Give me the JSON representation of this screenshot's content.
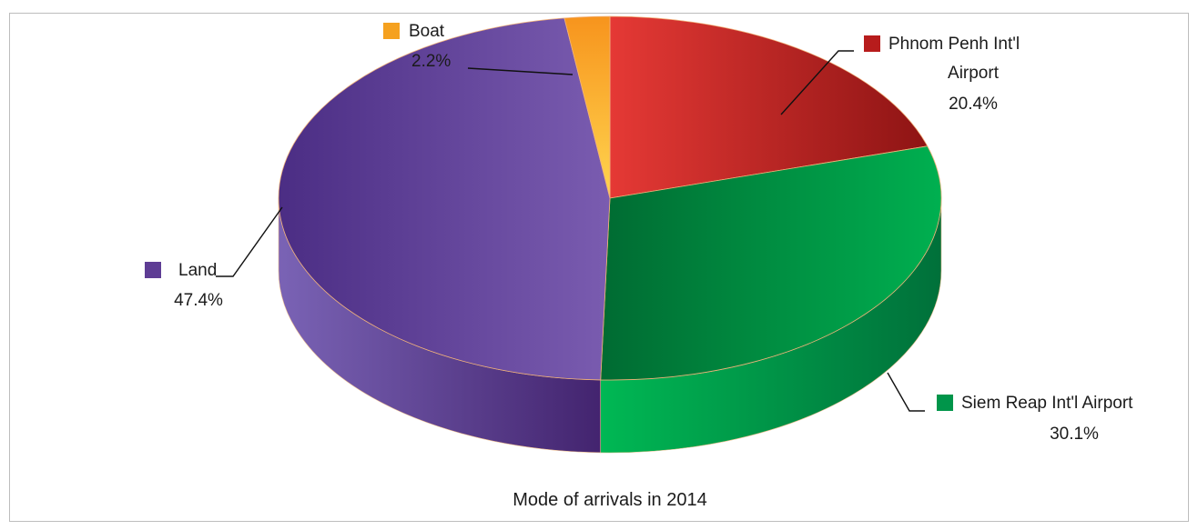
{
  "chart_data": {
    "type": "pie",
    "title": "Mode of arrivals in 2014",
    "style": "3d",
    "slices": [
      {
        "name": "Phnom Penh Int'l Airport",
        "value": 20.4,
        "value_label": "20.4%",
        "label_lines": [
          "Phnom Penh Int'l",
          "Airport"
        ],
        "color": "#b71c1c"
      },
      {
        "name": "Siem Reap Int'l Airport",
        "value": 30.1,
        "value_label": "30.1%",
        "label_lines": [
          "Siem Reap Int'l Airport"
        ],
        "color": "#00954a"
      },
      {
        "name": "Land",
        "value": 47.4,
        "value_label": "47.4%",
        "label_lines": [
          "Land"
        ],
        "color": "#5e3d94"
      },
      {
        "name": "Boat",
        "value": 2.2,
        "value_label": "2.2%",
        "label_lines": [
          "Boat"
        ],
        "color": "#f5a11f"
      }
    ]
  }
}
